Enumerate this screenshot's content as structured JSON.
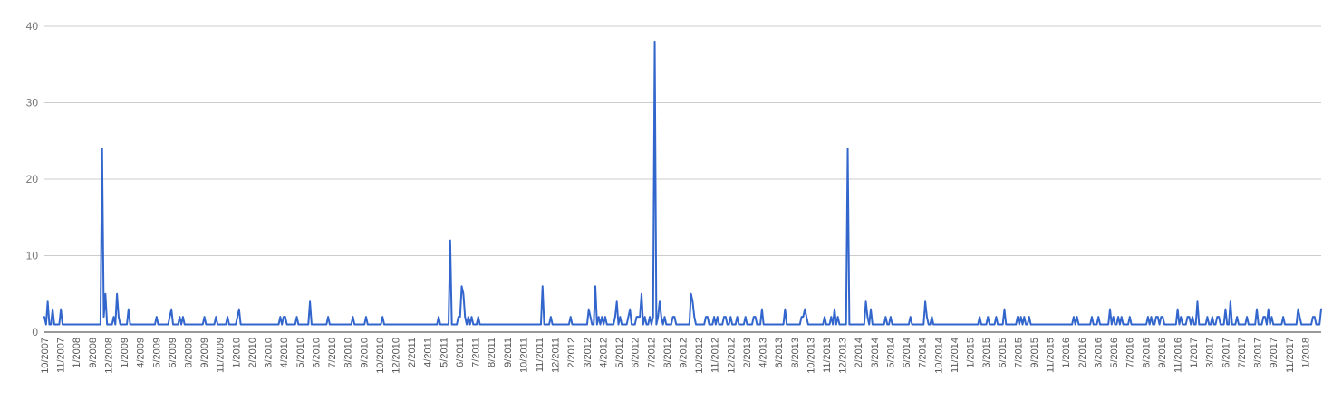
{
  "chart_data": {
    "type": "line",
    "title": "",
    "xlabel": "",
    "ylabel": "",
    "ylim": [
      0,
      40
    ],
    "yticks": [
      0,
      10,
      20,
      30,
      40
    ],
    "grid": true,
    "legend": "none",
    "series_color": "#3366cc",
    "x_ticks": [
      "10/2007",
      "11/2007",
      "1/2008",
      "9/2008",
      "12/2008",
      "1/2009",
      "4/2009",
      "5/2009",
      "6/2009",
      "8/2009",
      "9/2009",
      "11/2009",
      "1/2010",
      "2/2010",
      "3/2010",
      "4/2010",
      "5/2010",
      "6/2010",
      "7/2010",
      "8/2010",
      "9/2010",
      "10/2010",
      "12/2010",
      "2/2011",
      "4/2011",
      "5/2011",
      "6/2011",
      "7/2011",
      "8/2011",
      "9/2011",
      "10/2011",
      "11/2011",
      "12/2011",
      "2/2012",
      "3/2012",
      "4/2012",
      "5/2012",
      "6/2012",
      "7/2012",
      "8/2012",
      "9/2012",
      "10/2012",
      "11/2012",
      "12/2012",
      "2/2013",
      "4/2013",
      "6/2013",
      "8/2013",
      "10/2013",
      "11/2013",
      "12/2013",
      "2/2014",
      "3/2014",
      "5/2014",
      "6/2014",
      "7/2014",
      "10/2014",
      "11/2014",
      "1/2015",
      "3/2015",
      "6/2015",
      "7/2015",
      "9/2015",
      "11/2015",
      "1/2016",
      "2/2016",
      "3/2016",
      "5/2016",
      "7/2016",
      "8/2016",
      "9/2016",
      "11/2016",
      "1/2017",
      "3/2017",
      "6/2017",
      "7/2017",
      "8/2017",
      "9/2017",
      "11/2017",
      "1/2018"
    ],
    "series": [
      {
        "values": [
          2,
          1,
          4,
          1,
          1,
          3,
          1,
          1,
          1,
          1,
          3,
          1,
          1,
          1,
          1,
          1,
          1,
          1,
          1,
          1,
          1,
          1,
          1,
          1,
          1,
          1,
          1,
          1,
          1,
          1,
          1,
          1,
          1,
          1,
          1,
          24,
          2,
          5,
          1,
          1,
          1,
          1,
          2,
          1,
          5,
          2,
          1,
          1,
          1,
          1,
          1,
          3,
          1,
          1,
          1,
          1,
          1,
          1,
          1,
          1,
          1,
          1,
          1,
          1,
          1,
          1,
          1,
          1,
          2,
          1,
          1,
          1,
          1,
          1,
          1,
          1,
          2,
          3,
          1,
          1,
          1,
          1,
          2,
          1,
          2,
          1,
          1,
          1,
          1,
          1,
          1,
          1,
          1,
          1,
          1,
          1,
          1,
          2,
          1,
          1,
          1,
          1,
          1,
          1,
          2,
          1,
          1,
          1,
          1,
          1,
          1,
          2,
          1,
          1,
          1,
          1,
          1,
          2,
          3,
          1,
          1,
          1,
          1,
          1,
          1,
          1,
          1,
          1,
          1,
          1,
          1,
          1,
          1,
          1,
          1,
          1,
          1,
          1,
          1,
          1,
          1,
          1,
          1,
          2,
          1,
          2,
          2,
          1,
          1,
          1,
          1,
          1,
          1,
          2,
          1,
          1,
          1,
          1,
          1,
          1,
          1,
          4,
          1,
          1,
          1,
          1,
          1,
          1,
          1,
          1,
          1,
          1,
          2,
          1,
          1,
          1,
          1,
          1,
          1,
          1,
          1,
          1,
          1,
          1,
          1,
          1,
          1,
          2,
          1,
          1,
          1,
          1,
          1,
          1,
          1,
          2,
          1,
          1,
          1,
          1,
          1,
          1,
          1,
          1,
          1,
          2,
          1,
          1,
          1,
          1,
          1,
          1,
          1,
          1,
          1,
          1,
          1,
          1,
          1,
          1,
          1,
          1,
          1,
          1,
          1,
          1,
          1,
          1,
          1,
          1,
          1,
          1,
          1,
          1,
          1,
          1,
          1,
          1,
          1,
          2,
          1,
          1,
          1,
          1,
          1,
          1,
          12,
          1,
          1,
          1,
          1,
          2,
          2,
          6,
          5,
          2,
          1,
          2,
          1,
          2,
          1,
          1,
          1,
          2,
          1,
          1,
          1,
          1,
          1,
          1,
          1,
          1,
          1,
          1,
          1,
          1,
          1,
          1,
          1,
          1,
          1,
          1,
          1,
          1,
          1,
          1,
          1,
          1,
          1,
          1,
          1,
          1,
          1,
          1,
          1,
          1,
          1,
          1,
          1,
          1,
          1,
          1,
          6,
          1,
          1,
          1,
          1,
          2,
          1,
          1,
          1,
          1,
          1,
          1,
          1,
          1,
          1,
          1,
          1,
          2,
          1,
          1,
          1,
          1,
          1,
          1,
          1,
          1,
          1,
          1,
          3,
          2,
          1,
          1,
          6,
          1,
          2,
          1,
          2,
          1,
          2,
          1,
          1,
          1,
          1,
          1,
          2,
          4,
          1,
          2,
          1,
          1,
          1,
          1,
          2,
          3,
          1,
          1,
          1,
          2,
          2,
          2,
          5,
          1,
          2,
          1,
          1,
          2,
          1,
          2,
          38,
          1,
          2,
          4,
          2,
          1,
          2,
          1,
          1,
          1,
          1,
          2,
          2,
          1,
          1,
          1,
          1,
          1,
          1,
          1,
          1,
          1,
          5,
          4,
          2,
          1,
          1,
          1,
          1,
          1,
          1,
          2,
          2,
          1,
          1,
          1,
          2,
          1,
          2,
          1,
          1,
          1,
          2,
          2,
          1,
          1,
          2,
          1,
          1,
          1,
          2,
          1,
          1,
          1,
          1,
          2,
          1,
          1,
          1,
          1,
          2,
          2,
          1,
          1,
          1,
          3,
          1,
          1,
          1,
          1,
          1,
          1,
          1,
          1,
          1,
          1,
          1,
          1,
          1,
          3,
          1,
          1,
          1,
          1,
          1,
          1,
          1,
          1,
          1,
          2,
          2,
          3,
          2,
          1,
          1,
          1,
          1,
          1,
          1,
          1,
          1,
          1,
          1,
          2,
          1,
          1,
          1,
          2,
          1,
          3,
          1,
          2,
          1,
          1,
          1,
          1,
          1,
          24,
          1,
          1,
          1,
          1,
          1,
          1,
          1,
          1,
          1,
          1,
          4,
          2,
          1,
          3,
          1,
          1,
          1,
          1,
          1,
          1,
          1,
          1,
          2,
          1,
          1,
          2,
          1,
          1,
          1,
          1,
          1,
          1,
          1,
          1,
          1,
          1,
          1,
          2,
          1,
          1,
          1,
          1,
          1,
          1,
          1,
          1,
          4,
          2,
          1,
          1,
          2,
          1,
          1,
          1,
          1,
          1,
          1,
          1,
          1,
          1,
          1,
          1,
          1,
          1,
          1,
          1,
          1,
          1,
          1,
          1,
          1,
          1,
          1,
          1,
          1,
          1,
          1,
          1,
          1,
          2,
          1,
          1,
          1,
          1,
          2,
          1,
          1,
          1,
          1,
          2,
          1,
          1,
          1,
          1,
          3,
          1,
          1,
          1,
          1,
          1,
          1,
          1,
          2,
          1,
          2,
          1,
          2,
          1,
          1,
          2,
          1,
          1,
          1,
          1,
          1,
          1,
          1,
          1,
          1,
          1,
          1,
          1,
          1,
          1,
          1,
          1,
          1,
          1,
          1,
          1,
          1,
          1,
          1,
          1,
          1,
          1,
          2,
          1,
          2,
          1,
          1,
          1,
          1,
          1,
          1,
          1,
          1,
          2,
          1,
          1,
          1,
          2,
          1,
          1,
          1,
          1,
          1,
          1,
          3,
          1,
          2,
          1,
          1,
          2,
          1,
          2,
          1,
          1,
          1,
          1,
          2,
          1,
          1,
          1,
          1,
          1,
          1,
          1,
          1,
          1,
          1,
          2,
          1,
          2,
          1,
          1,
          2,
          2,
          1,
          2,
          2,
          1,
          1,
          1,
          1,
          1,
          1,
          1,
          1,
          3,
          1,
          2,
          1,
          1,
          1,
          2,
          2,
          1,
          2,
          1,
          1,
          4,
          1,
          1,
          1,
          1,
          1,
          2,
          1,
          1,
          2,
          1,
          1,
          2,
          2,
          1,
          1,
          1,
          3,
          1,
          1,
          4,
          1,
          1,
          1,
          2,
          1,
          1,
          1,
          1,
          1,
          2,
          1,
          1,
          1,
          1,
          1,
          3,
          1,
          1,
          1,
          2,
          2,
          1,
          3,
          1,
          2,
          1,
          1,
          1,
          1,
          1,
          1,
          2,
          1,
          1,
          1,
          1,
          1,
          1,
          1,
          1,
          3,
          2,
          1,
          1,
          1,
          1,
          1,
          1,
          1,
          2,
          2,
          1,
          1,
          1,
          3
        ]
      }
    ]
  }
}
